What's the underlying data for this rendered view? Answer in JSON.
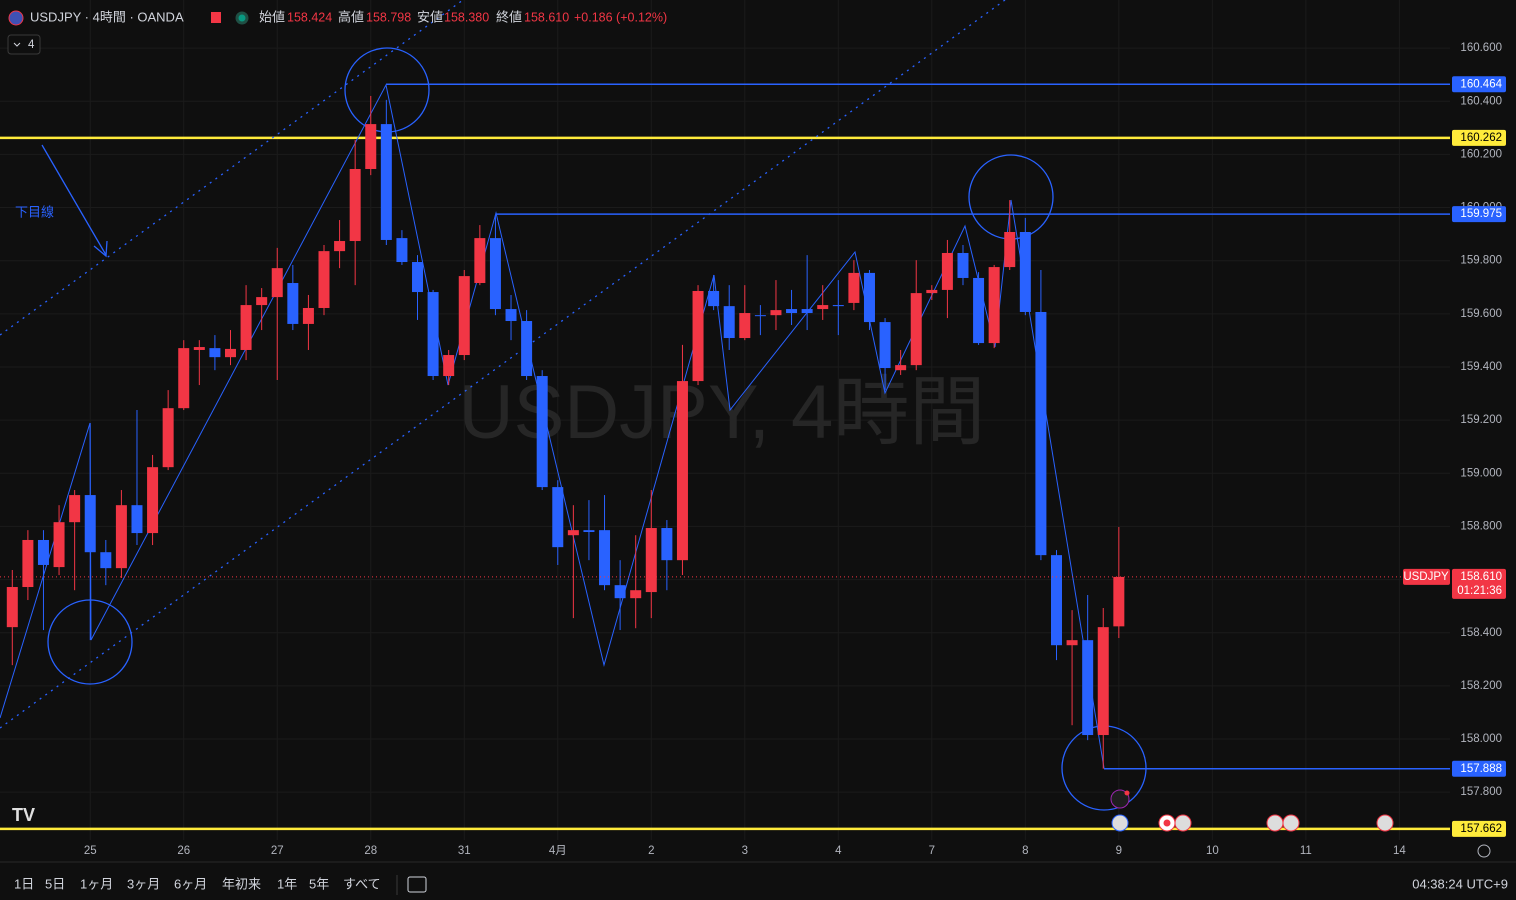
{
  "header": {
    "symbol": "USDJPY · 4時間 · OANDA",
    "fields": [
      {
        "label": "始値",
        "value": "158.424"
      },
      {
        "label": "高値",
        "value": "158.798"
      },
      {
        "label": "安値",
        "value": "158.380"
      },
      {
        "label": "終値",
        "value": "158.610"
      }
    ],
    "change": "+0.186 (+0.12%)",
    "indicator_count": "4"
  },
  "chart_data": {
    "type": "candlestick",
    "watermark": "USDJPY, 4時間",
    "annotation": "下目線",
    "name": "USDJPY",
    "up_color": "#f23645",
    "down_color": "#2962ff",
    "categories": [
      null,
      null,
      null,
      null,
      null,
      "25",
      null,
      null,
      null,
      null,
      null,
      "26",
      null,
      null,
      null,
      null,
      null,
      "27",
      null,
      null,
      null,
      null,
      null,
      "28",
      null,
      null,
      null,
      null,
      null,
      "31",
      null,
      null,
      null,
      null,
      null,
      "4月",
      null,
      null,
      null,
      null,
      null,
      "2",
      null,
      null,
      null,
      null,
      null,
      "3",
      null,
      null,
      null,
      null,
      null,
      "4",
      null,
      null,
      null,
      null,
      null,
      "7",
      null,
      null,
      null,
      null,
      null,
      "8",
      null,
      null,
      null,
      null,
      null,
      "9",
      null,
      null,
      null,
      null,
      null,
      "10",
      null,
      null,
      null,
      null,
      null,
      "11",
      null,
      null,
      null,
      null,
      null,
      "14"
    ],
    "open": [
      158.421,
      158.572,
      158.749,
      158.647,
      158.816,
      158.918,
      158.703,
      158.643,
      158.88,
      158.775,
      159.023,
      159.245,
      159.464,
      159.471,
      159.437,
      159.464,
      159.633,
      159.663,
      159.716,
      159.562,
      159.622,
      159.836,
      159.874,
      160.145,
      160.314,
      159.885,
      159.795,
      159.682,
      159.366,
      159.445,
      159.716,
      159.885,
      159.618,
      159.573,
      159.366,
      158.948,
      158.767,
      158.786,
      158.786,
      158.579,
      158.53,
      158.553,
      158.794,
      158.673,
      159.347,
      159.686,
      159.629,
      159.509,
      159.595,
      159.595,
      159.618,
      159.618,
      159.618,
      159.633,
      159.641,
      159.754,
      159.569,
      159.388,
      159.407,
      159.678,
      159.69,
      159.829,
      159.735,
      159.49,
      159.776,
      159.908,
      159.607,
      158.692,
      158.353,
      158.372,
      158.015,
      158.424,
      null,
      null,
      null,
      null,
      null,
      null,
      null,
      null,
      null,
      null,
      null,
      null,
      null,
      null,
      null,
      null,
      null,
      null
    ],
    "high": [
      158.636,
      158.786,
      158.786,
      158.88,
      158.937,
      159.189,
      158.749,
      158.937,
      159.238,
      159.069,
      159.313,
      159.501,
      159.501,
      159.52,
      159.539,
      159.708,
      159.697,
      159.848,
      159.784,
      159.671,
      159.859,
      159.953,
      160.254,
      160.42,
      160.405,
      159.915,
      159.821,
      159.69,
      159.464,
      159.765,
      159.934,
      159.972,
      159.671,
      159.614,
      159.388,
      158.974,
      158.88,
      158.899,
      158.918,
      158.673,
      158.767,
      158.937,
      158.824,
      159.483,
      159.708,
      159.746,
      159.708,
      159.708,
      159.633,
      159.727,
      159.69,
      159.821,
      159.708,
      159.727,
      159.802,
      159.765,
      159.584,
      159.464,
      159.802,
      159.708,
      159.878,
      159.859,
      159.757,
      159.784,
      160.028,
      159.961,
      159.765,
      158.711,
      158.485,
      158.542,
      158.493,
      158.798,
      null,
      null,
      null,
      null,
      null,
      null,
      null,
      null,
      null,
      null,
      null,
      null,
      null,
      null,
      null,
      null,
      null,
      null
    ],
    "low": [
      158.278,
      158.523,
      158.41,
      158.617,
      158.56,
      158.372,
      158.579,
      158.606,
      158.73,
      158.73,
      159.012,
      159.238,
      159.332,
      159.388,
      159.407,
      159.426,
      159.539,
      159.351,
      159.539,
      159.464,
      159.595,
      159.772,
      159.708,
      160.122,
      159.859,
      159.784,
      159.577,
      159.351,
      159.332,
      159.426,
      159.708,
      159.595,
      159.501,
      159.351,
      158.937,
      158.655,
      158.455,
      158.673,
      158.56,
      158.41,
      158.417,
      158.455,
      158.56,
      158.617,
      159.332,
      159.614,
      159.464,
      159.501,
      159.52,
      159.539,
      159.558,
      159.539,
      159.577,
      159.52,
      159.614,
      159.539,
      159.313,
      159.37,
      159.388,
      159.652,
      159.584,
      159.708,
      159.483,
      159.471,
      159.765,
      159.595,
      158.673,
      158.297,
      158.052,
      157.996,
      157.888,
      158.38,
      null,
      null,
      null,
      null,
      null,
      null,
      null,
      null,
      null,
      null,
      null,
      null,
      null,
      null,
      null,
      null,
      null,
      null
    ],
    "close": [
      158.572,
      158.749,
      158.655,
      158.816,
      158.918,
      158.703,
      158.643,
      158.88,
      158.775,
      159.023,
      159.245,
      159.471,
      159.475,
      159.437,
      159.468,
      159.633,
      159.663,
      159.772,
      159.562,
      159.622,
      159.836,
      159.874,
      160.145,
      160.314,
      159.878,
      159.795,
      159.682,
      159.366,
      159.445,
      159.742,
      159.885,
      159.618,
      159.573,
      159.366,
      158.948,
      158.722,
      158.786,
      158.779,
      158.579,
      158.53,
      158.56,
      158.794,
      158.673,
      159.347,
      159.686,
      159.629,
      159.509,
      159.603,
      159.592,
      159.614,
      159.603,
      159.603,
      159.633,
      159.629,
      159.754,
      159.569,
      159.396,
      159.407,
      159.678,
      159.69,
      159.829,
      159.735,
      159.49,
      159.776,
      159.908,
      159.607,
      158.692,
      158.353,
      158.372,
      158.015,
      158.421,
      158.61,
      null,
      null,
      null,
      null,
      null,
      null,
      null,
      null,
      null,
      null,
      null,
      null,
      null,
      null,
      null,
      null,
      null,
      null
    ],
    "ylim": [
      157.62,
      160.781
    ],
    "yticks": [
      {
        "value": 157.8,
        "label": "157.800"
      },
      {
        "value": 158.0,
        "label": "158.000"
      },
      {
        "value": 158.2,
        "label": "158.200"
      },
      {
        "value": 158.4,
        "label": "158.400"
      },
      {
        "value": 158.6,
        "label": "158.600"
      },
      {
        "value": 158.8,
        "label": "158.800"
      },
      {
        "value": 159.0,
        "label": "159.000"
      },
      {
        "value": 159.2,
        "label": "159.200"
      },
      {
        "value": 159.4,
        "label": "159.400"
      },
      {
        "value": 159.6,
        "label": "159.600"
      },
      {
        "value": 159.8,
        "label": "159.800"
      },
      {
        "value": 160.0,
        "label": "160.000"
      },
      {
        "value": 160.2,
        "label": "160.200"
      },
      {
        "value": 160.4,
        "label": "160.400"
      },
      {
        "value": 160.6,
        "label": "160.600"
      }
    ],
    "grid": true,
    "levels": [
      {
        "value": 160.464,
        "color": "#2962ff"
      },
      {
        "value": 160.262,
        "color": "#ffeb3b"
      },
      {
        "value": 159.975,
        "color": "#2962ff"
      },
      {
        "value": 157.888,
        "color": "#2962ff"
      },
      {
        "value": 157.662,
        "color": "#ffeb3b"
      }
    ],
    "last_price": {
      "value": 158.61,
      "label": "158.610"
    },
    "countdown": "01:21:36"
  },
  "toolbar": {
    "timeframes": [
      "1日",
      "5日",
      "1ヶ月",
      "3ヶ月",
      "6ヶ月",
      "年初来",
      "1年",
      "5年",
      "すべて"
    ],
    "clock": "04:38:24 UTC+9"
  }
}
